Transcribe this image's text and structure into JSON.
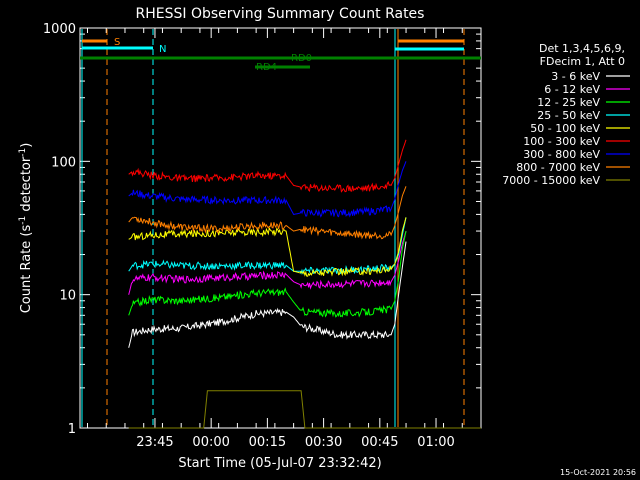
{
  "chart_data": {
    "type": "line",
    "title": "RHESSI Observing Summary Count Rates",
    "xlabel": "Start Time (05-Jul-07 23:32:42)",
    "ylabel_main": "Count Rate (s",
    "ylabel_sup1": "-1",
    "ylabel_mid": " detector",
    "ylabel_sup2": "-1",
    "ylabel_end": ")",
    "xlim": [
      -7,
      100
    ],
    "ylim": [
      1,
      1000
    ],
    "log_y": true,
    "x_ticks": [
      {
        "x": 13,
        "label": "23:45"
      },
      {
        "x": 28,
        "label": "00:00"
      },
      {
        "x": 43,
        "label": "00:15"
      },
      {
        "x": 58,
        "label": "00:30"
      },
      {
        "x": 73,
        "label": "00:45"
      },
      {
        "x": 88,
        "label": "01:00"
      }
    ],
    "y_ticks": [
      {
        "y": 1,
        "label": "1"
      },
      {
        "y": 10,
        "label": "10"
      },
      {
        "y": 100,
        "label": "100"
      },
      {
        "y": 1000,
        "label": "1000"
      }
    ],
    "legend_placement": "top-right",
    "legend_header": [
      "Det 1,3,4,5,6,9,",
      "FDecim 1, Att 0"
    ],
    "series": [
      {
        "name": "3 - 6 keV",
        "color": "#ffffff",
        "points": [
          [
            6,
            4
          ],
          [
            7,
            5.2
          ],
          [
            12,
            5.5
          ],
          [
            20,
            5.6
          ],
          [
            30,
            6.2
          ],
          [
            40,
            7.2
          ],
          [
            48,
            7.4
          ],
          [
            50,
            6.8
          ],
          [
            52,
            5.8
          ],
          [
            62,
            5.0
          ],
          [
            70,
            5.0
          ],
          [
            76,
            5.0
          ],
          [
            77,
            6
          ],
          [
            78,
            10
          ],
          [
            79,
            16
          ],
          [
            80,
            25
          ]
        ]
      },
      {
        "name": "6 - 12 keV",
        "color": "#ff00ff",
        "points": [
          [
            6,
            10
          ],
          [
            7,
            13
          ],
          [
            12,
            13.5
          ],
          [
            20,
            13
          ],
          [
            30,
            13.4
          ],
          [
            40,
            13.8
          ],
          [
            48,
            14.2
          ],
          [
            50,
            12.5
          ],
          [
            52,
            11.8
          ],
          [
            62,
            12.0
          ],
          [
            70,
            12.2
          ],
          [
            76,
            12.5
          ],
          [
            77,
            14
          ],
          [
            78,
            18
          ],
          [
            79,
            24
          ],
          [
            80,
            30
          ]
        ]
      },
      {
        "name": "12 - 25 keV",
        "color": "#00ff00",
        "points": [
          [
            6,
            7
          ],
          [
            7,
            8.5
          ],
          [
            12,
            9.2
          ],
          [
            20,
            9.0
          ],
          [
            30,
            9.5
          ],
          [
            40,
            10.3
          ],
          [
            48,
            10.5
          ],
          [
            50,
            8.8
          ],
          [
            52,
            7.5
          ],
          [
            62,
            7.2
          ],
          [
            70,
            7.4
          ],
          [
            76,
            7.8
          ],
          [
            77,
            9
          ],
          [
            78,
            13
          ],
          [
            79,
            22
          ],
          [
            80,
            30
          ]
        ]
      },
      {
        "name": "25 - 50 keV",
        "color": "#00ffff",
        "points": [
          [
            6,
            15
          ],
          [
            7,
            16.5
          ],
          [
            12,
            17
          ],
          [
            20,
            16.5
          ],
          [
            30,
            16.4
          ],
          [
            40,
            16.6
          ],
          [
            48,
            16.6
          ],
          [
            50,
            15.0
          ],
          [
            52,
            15.0
          ],
          [
            62,
            15.2
          ],
          [
            70,
            15.5
          ],
          [
            76,
            16.0
          ],
          [
            77,
            17
          ],
          [
            78,
            20
          ],
          [
            79,
            28
          ],
          [
            80,
            38
          ]
        ]
      },
      {
        "name": "50 - 100 keV",
        "color": "#ffff00",
        "points": [
          [
            6,
            26
          ],
          [
            7,
            27
          ],
          [
            12,
            28
          ],
          [
            20,
            28.5
          ],
          [
            30,
            29
          ],
          [
            40,
            29.5
          ],
          [
            48,
            30
          ],
          [
            50,
            15.0
          ],
          [
            52,
            14.5
          ],
          [
            62,
            14.8
          ],
          [
            70,
            15.0
          ],
          [
            76,
            15.5
          ],
          [
            77,
            17
          ],
          [
            78,
            21
          ],
          [
            79,
            30
          ],
          [
            80,
            38
          ]
        ]
      },
      {
        "name": "100 - 300 keV",
        "color": "#ff0000",
        "points": [
          [
            6,
            80
          ],
          [
            7,
            84
          ],
          [
            12,
            79
          ],
          [
            20,
            74
          ],
          [
            30,
            75
          ],
          [
            40,
            78
          ],
          [
            48,
            78
          ],
          [
            50,
            66
          ],
          [
            52,
            64
          ],
          [
            62,
            63
          ],
          [
            70,
            63
          ],
          [
            76,
            66
          ],
          [
            77,
            75
          ],
          [
            78,
            95
          ],
          [
            79,
            120
          ],
          [
            80,
            145
          ]
        ]
      },
      {
        "name": "300 - 800 keV",
        "color": "#0000ff",
        "points": [
          [
            6,
            55
          ],
          [
            7,
            58
          ],
          [
            12,
            55
          ],
          [
            20,
            52
          ],
          [
            30,
            51
          ],
          [
            40,
            51
          ],
          [
            48,
            51
          ],
          [
            50,
            40
          ],
          [
            52,
            41
          ],
          [
            62,
            41
          ],
          [
            70,
            42
          ],
          [
            76,
            44
          ],
          [
            77,
            52
          ],
          [
            78,
            68
          ],
          [
            79,
            85
          ],
          [
            80,
            100
          ]
        ]
      },
      {
        "name": "800 - 7000 keV",
        "color": "#ff8000",
        "points": [
          [
            6,
            35
          ],
          [
            7,
            38
          ],
          [
            12,
            35
          ],
          [
            20,
            32
          ],
          [
            30,
            31
          ],
          [
            40,
            33
          ],
          [
            48,
            33
          ],
          [
            50,
            30
          ],
          [
            52,
            31
          ],
          [
            62,
            29
          ],
          [
            70,
            28
          ],
          [
            76,
            28
          ],
          [
            77,
            33
          ],
          [
            78,
            42
          ],
          [
            79,
            55
          ],
          [
            80,
            65
          ]
        ]
      },
      {
        "name": "7000 - 15000 keV",
        "color": "#808000",
        "points": [
          [
            6,
            1
          ],
          [
            26,
            1
          ],
          [
            27,
            1.9
          ],
          [
            52,
            1.9
          ],
          [
            53,
            1
          ],
          [
            100,
            1
          ]
        ]
      }
    ],
    "annotations": [
      {
        "text": "S",
        "color": "#ff8000"
      },
      {
        "text": "N",
        "color": "#00ffff"
      },
      {
        "text": "RD0",
        "color": "#008000"
      },
      {
        "text": "RD4",
        "color": "#008000"
      }
    ],
    "timestamp": "15-Oct-2021 20:56"
  }
}
